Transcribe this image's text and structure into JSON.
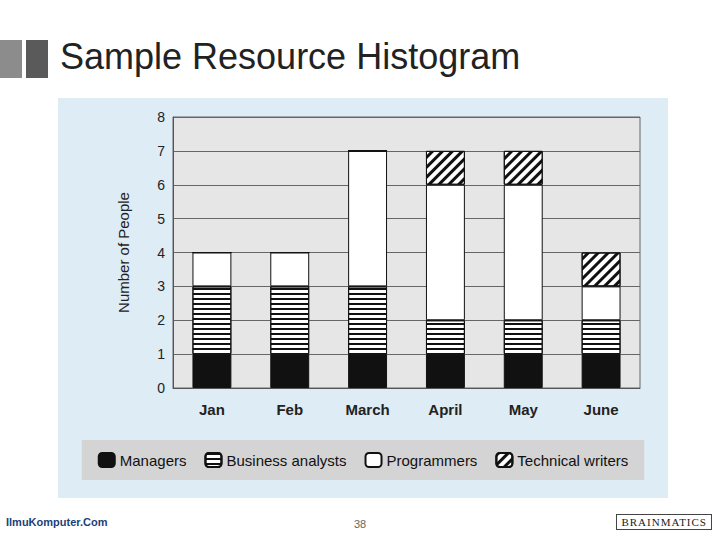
{
  "slide": {
    "title": "Sample Resource Histogram",
    "page_number": 38,
    "footer_left": "IlmuKomputer.Com",
    "footer_right": "BRAINMATICS"
  },
  "chart_data": {
    "type": "bar",
    "stacked": true,
    "grid": true,
    "legend": "bottom",
    "y_label": "Number of People",
    "categories": [
      "Jan",
      "Feb",
      "March",
      "April",
      "May",
      "June"
    ],
    "series": [
      {
        "name": "Managers",
        "color": "#111111",
        "values": [
          1,
          1,
          1,
          1,
          1,
          1
        ]
      },
      {
        "name": "Business analysts",
        "color": "#ffffff",
        "values": [
          2,
          2,
          2,
          1,
          1,
          1
        ]
      },
      {
        "name": "Programmers",
        "color": "#ffffff",
        "values": [
          1,
          1,
          4,
          4,
          4,
          1
        ]
      },
      {
        "name": "Technical writers",
        "color": "#ffffff",
        "values": [
          0,
          0,
          0,
          1,
          1,
          1
        ]
      }
    ],
    "ylim": [
      0,
      8
    ],
    "yticks": [
      0,
      1,
      2,
      3,
      4,
      5,
      6,
      7,
      8
    ]
  }
}
